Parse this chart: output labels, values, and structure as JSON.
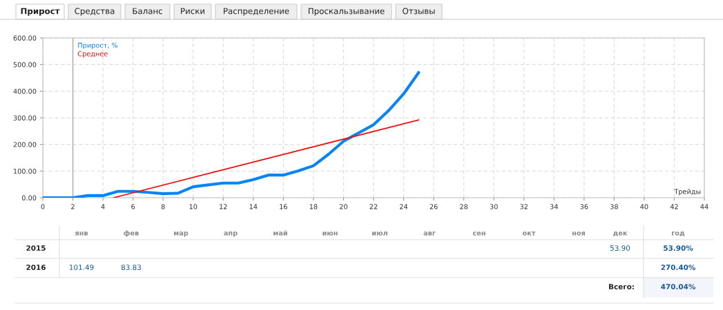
{
  "chart_data": {
    "type": "line",
    "xlabel": "Трейды",
    "x": [
      0,
      1,
      2,
      3,
      4,
      5,
      6,
      7,
      8,
      9,
      10,
      11,
      12,
      13,
      14,
      15,
      16,
      17,
      18,
      19,
      20,
      21,
      22,
      23,
      24,
      25
    ],
    "series": [
      {
        "name": "Прирост, %",
        "color": "#0a84f5",
        "values": [
          0,
          0,
          0,
          8,
          8,
          24,
          24,
          20,
          15,
          17,
          41,
          48,
          55,
          55,
          68,
          85,
          85,
          101,
          120,
          163,
          212,
          243,
          274,
          327,
          390,
          470
        ]
      },
      {
        "name": "Среднее",
        "color": "#ee1111",
        "x": [
          4.7,
          25
        ],
        "values": [
          0,
          292
        ]
      }
    ],
    "xlim": [
      0,
      44
    ],
    "xticks": [
      0,
      2,
      4,
      6,
      8,
      10,
      12,
      14,
      16,
      18,
      20,
      22,
      24,
      26,
      28,
      30,
      32,
      34,
      36,
      38,
      40,
      42,
      44
    ],
    "ylim": [
      0,
      600
    ],
    "yticks": [
      {
        "value": 0,
        "label": "0.00"
      },
      {
        "value": 100,
        "label": "100.00"
      },
      {
        "value": 200,
        "label": "200.00"
      },
      {
        "value": 300,
        "label": "300.00"
      },
      {
        "value": 400,
        "label": "400.00"
      },
      {
        "value": 500,
        "label": "500.00"
      },
      {
        "value": 600,
        "label": "600.00"
      }
    ],
    "ref_lines": [
      {
        "axis": "x",
        "value": 2,
        "label": null,
        "color": "#aaaaaa"
      }
    ],
    "grid": true,
    "legend": "top left",
    "marker": "none",
    "line_style": "solid",
    "annotations": [
      "Прирост",
      "Средства",
      "Баланс",
      "Риски",
      "Распределение",
      "Проскальзывание",
      "Отзывы",
      "янв",
      "фев",
      "мар",
      "апр",
      "май",
      "июн",
      "июл",
      "авг",
      "сен",
      "окт",
      "ноя",
      "дек",
      "год",
      "2015",
      "53.90",
      "53.90%",
      "2016",
      "101.49",
      "83.83",
      "270.40%",
      "Всего:",
      "470.04%"
    ]
  }
}
